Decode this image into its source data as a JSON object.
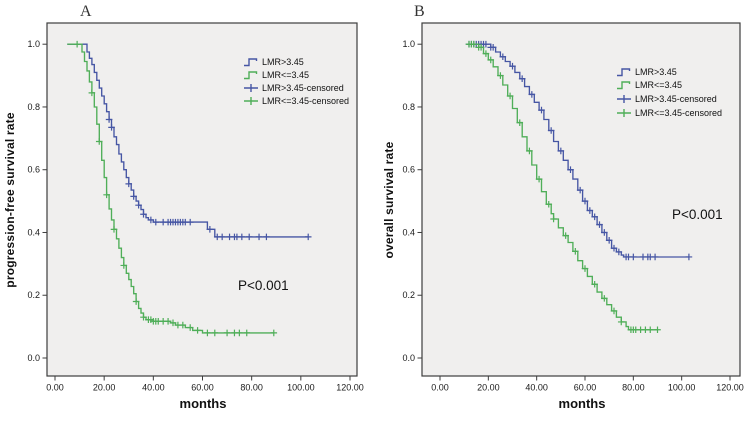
{
  "figure": {
    "panels": [
      {
        "letter": "A",
        "ylabel": "progression-free survival rate",
        "xlabel": "months",
        "p_value": "P<0.001",
        "legend": [
          {
            "label": "LMR>3.45",
            "symbol": "step-line",
            "color": "blue"
          },
          {
            "label": "LMR<=3.45",
            "symbol": "step-line",
            "color": "green"
          },
          {
            "label": "LMR>3.45-censored",
            "symbol": "plus-mark",
            "color": "blue"
          },
          {
            "label": "LMR<=3.45-censored",
            "symbol": "plus-mark",
            "color": "green"
          }
        ]
      },
      {
        "letter": "B",
        "ylabel": "overall survival rate",
        "xlabel": "months",
        "p_value": "P<0.001",
        "legend": [
          {
            "label": "LMR>3.45",
            "symbol": "step-line",
            "color": "blue"
          },
          {
            "label": "LMR<=3.45",
            "symbol": "step-line",
            "color": "green"
          },
          {
            "label": "LMR>3.45-censored",
            "symbol": "plus-mark",
            "color": "blue"
          },
          {
            "label": "LMR<=3.45-censored",
            "symbol": "plus-mark",
            "color": "green"
          }
        ]
      }
    ],
    "colors": {
      "blue": "#4656a4",
      "green": "#4fae58",
      "plot_bg": "#f0efee",
      "frame": "#3d3d3d",
      "tick_text": "#1a1a1a"
    }
  },
  "chart_data": [
    {
      "type": "line",
      "subtype": "kaplan-meier-step",
      "panel": "A",
      "title": "",
      "xlabel": "months",
      "ylabel": "progression-free survival rate",
      "xlim": [
        0,
        120
      ],
      "ylim": [
        0,
        1
      ],
      "xticks": [
        0,
        20,
        40,
        60,
        80,
        100,
        120
      ],
      "xtick_labels": [
        "0.00",
        "20.00",
        "40.00",
        "60.00",
        "80.00",
        "100.00",
        "120.00"
      ],
      "yticks": [
        0,
        0.2,
        0.4,
        0.6,
        0.8,
        1.0
      ],
      "ytick_labels": [
        "0.0",
        "0.2",
        "0.4",
        "0.6",
        "0.8",
        "1.0"
      ],
      "annotation": "P<0.001",
      "legend_position": "upper-right-inside",
      "grid": false,
      "series": [
        {
          "name": "LMR>3.45",
          "color": "blue",
          "points": [
            [
              5,
              1.0
            ],
            [
              12,
              1.0
            ],
            [
              13,
              0.975
            ],
            [
              14,
              0.955
            ],
            [
              15,
              0.935
            ],
            [
              16,
              0.91
            ],
            [
              17,
              0.885
            ],
            [
              18,
              0.86
            ],
            [
              19,
              0.835
            ],
            [
              20,
              0.81
            ],
            [
              21,
              0.785
            ],
            [
              22,
              0.76
            ],
            [
              23,
              0.735
            ],
            [
              24,
              0.705
            ],
            [
              25,
              0.68
            ],
            [
              26,
              0.65
            ],
            [
              27,
              0.625
            ],
            [
              28,
              0.6
            ],
            [
              29,
              0.575
            ],
            [
              30,
              0.555
            ],
            [
              31,
              0.535
            ],
            [
              32,
              0.515
            ],
            [
              33,
              0.5
            ],
            [
              34,
              0.487
            ],
            [
              35,
              0.473
            ],
            [
              36,
              0.458
            ],
            [
              37,
              0.447
            ],
            [
              38,
              0.44
            ],
            [
              40,
              0.433
            ],
            [
              62,
              0.41
            ],
            [
              65,
              0.386
            ],
            [
              103,
              0.386
            ]
          ],
          "censored_times": [
            22,
            23,
            30,
            32,
            34,
            36,
            39,
            41,
            44,
            46,
            47,
            48,
            49,
            50,
            51,
            52,
            53,
            55,
            63,
            66,
            68,
            71,
            73,
            74,
            76,
            79,
            83,
            86,
            103
          ]
        },
        {
          "name": "LMR<=3.45",
          "color": "green",
          "points": [
            [
              5,
              1.0
            ],
            [
              10,
              1.0
            ],
            [
              11,
              0.975
            ],
            [
              12,
              0.945
            ],
            [
              13,
              0.915
            ],
            [
              14,
              0.88
            ],
            [
              15,
              0.845
            ],
            [
              16,
              0.8
            ],
            [
              17,
              0.745
            ],
            [
              18,
              0.69
            ],
            [
              19,
              0.63
            ],
            [
              20,
              0.575
            ],
            [
              21,
              0.52
            ],
            [
              22,
              0.475
            ],
            [
              23,
              0.44
            ],
            [
              24,
              0.41
            ],
            [
              25,
              0.38
            ],
            [
              26,
              0.35
            ],
            [
              27,
              0.32
            ],
            [
              28,
              0.295
            ],
            [
              29,
              0.27
            ],
            [
              30,
              0.25
            ],
            [
              31,
              0.228
            ],
            [
              32,
              0.205
            ],
            [
              33,
              0.18
            ],
            [
              34,
              0.158
            ],
            [
              35,
              0.143
            ],
            [
              36,
              0.13
            ],
            [
              37,
              0.122
            ],
            [
              40,
              0.117
            ],
            [
              47,
              0.112
            ],
            [
              49,
              0.105
            ],
            [
              53,
              0.097
            ],
            [
              56,
              0.088
            ],
            [
              60,
              0.08
            ],
            [
              89,
              0.08
            ]
          ],
          "censored_times": [
            9,
            15,
            18,
            21,
            24,
            28,
            33,
            36,
            38,
            39,
            40,
            41,
            42,
            44,
            46,
            48,
            50,
            52,
            55,
            58,
            62,
            65,
            70,
            73,
            75,
            78,
            89
          ]
        }
      ]
    },
    {
      "type": "line",
      "subtype": "kaplan-meier-step",
      "panel": "B",
      "title": "",
      "xlabel": "months",
      "ylabel": "overall survival rate",
      "xlim": [
        0,
        120
      ],
      "ylim": [
        0,
        1
      ],
      "xticks": [
        0,
        20,
        40,
        60,
        80,
        100,
        120
      ],
      "xtick_labels": [
        "0.00",
        "20.00",
        "40.00",
        "60.00",
        "80.00",
        "100.00",
        "120.00"
      ],
      "yticks": [
        0,
        0.2,
        0.4,
        0.6,
        0.8,
        1.0
      ],
      "ytick_labels": [
        "0.0",
        "0.2",
        "0.4",
        "0.6",
        "0.8",
        "1.0"
      ],
      "annotation": "P<0.001",
      "legend_position": "upper-right-inside",
      "grid": false,
      "series": [
        {
          "name": "LMR>3.45",
          "color": "blue",
          "points": [
            [
              11,
              1.0
            ],
            [
              20,
              1.0
            ],
            [
              21,
              0.99
            ],
            [
              23,
              0.975
            ],
            [
              25,
              0.96
            ],
            [
              27,
              0.945
            ],
            [
              29,
              0.93
            ],
            [
              31,
              0.91
            ],
            [
              33,
              0.89
            ],
            [
              35,
              0.865
            ],
            [
              37,
              0.84
            ],
            [
              39,
              0.815
            ],
            [
              41,
              0.79
            ],
            [
              43,
              0.76
            ],
            [
              45,
              0.725
            ],
            [
              47,
              0.69
            ],
            [
              49,
              0.66
            ],
            [
              51,
              0.63
            ],
            [
              53,
              0.6
            ],
            [
              55,
              0.57
            ],
            [
              57,
              0.535
            ],
            [
              59,
              0.5
            ],
            [
              61,
              0.47
            ],
            [
              63,
              0.45
            ],
            [
              65,
              0.425
            ],
            [
              67,
              0.4
            ],
            [
              69,
              0.375
            ],
            [
              71,
              0.35
            ],
            [
              73,
              0.338
            ],
            [
              75,
              0.328
            ],
            [
              76,
              0.322
            ],
            [
              103,
              0.322
            ]
          ],
          "censored_times": [
            12,
            13,
            14,
            15,
            16,
            17,
            18,
            19,
            21,
            22,
            26,
            30,
            34,
            38,
            42,
            46,
            50,
            54,
            58,
            60,
            62,
            64,
            66,
            68,
            70,
            72,
            74,
            77,
            78,
            80,
            84,
            86,
            87,
            89,
            103
          ]
        },
        {
          "name": "LMR<=3.45",
          "color": "green",
          "points": [
            [
              11,
              1.0
            ],
            [
              15,
              1.0
            ],
            [
              16,
              0.99
            ],
            [
              18,
              0.97
            ],
            [
              20,
              0.95
            ],
            [
              22,
              0.928
            ],
            [
              24,
              0.9
            ],
            [
              26,
              0.87
            ],
            [
              28,
              0.835
            ],
            [
              30,
              0.795
            ],
            [
              32,
              0.75
            ],
            [
              34,
              0.705
            ],
            [
              36,
              0.66
            ],
            [
              38,
              0.615
            ],
            [
              40,
              0.57
            ],
            [
              42,
              0.53
            ],
            [
              44,
              0.49
            ],
            [
              46,
              0.46
            ],
            [
              47,
              0.443
            ],
            [
              49,
              0.415
            ],
            [
              51,
              0.39
            ],
            [
              53,
              0.368
            ],
            [
              55,
              0.34
            ],
            [
              57,
              0.31
            ],
            [
              59,
              0.285
            ],
            [
              61,
              0.26
            ],
            [
              63,
              0.235
            ],
            [
              65,
              0.21
            ],
            [
              67,
              0.19
            ],
            [
              69,
              0.17
            ],
            [
              71,
              0.15
            ],
            [
              73,
              0.13
            ],
            [
              75,
              0.115
            ],
            [
              77,
              0.1
            ],
            [
              78,
              0.09
            ],
            [
              90,
              0.09
            ]
          ],
          "censored_times": [
            12,
            13,
            14,
            16,
            17,
            19,
            21,
            25,
            29,
            33,
            37,
            41,
            45,
            47,
            52,
            56,
            60,
            64,
            68,
            72,
            75,
            79,
            80,
            81,
            83,
            85,
            87,
            90
          ]
        }
      ]
    }
  ]
}
